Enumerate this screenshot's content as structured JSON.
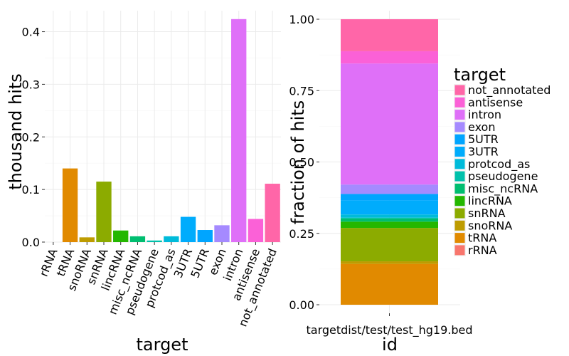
{
  "chart_data": [
    {
      "type": "bar",
      "xlabel": "target",
      "ylabel": "thousand hits",
      "ylim": [
        0,
        0.44
      ],
      "yticks": [
        0.0,
        0.1,
        0.2,
        0.3,
        0.4
      ],
      "ytick_labels": [
        "0.0",
        "0.1",
        "0.2",
        "0.3",
        "0.4"
      ],
      "grid": true,
      "categories": [
        "rRNA",
        "tRNA",
        "snoRNA",
        "snRNA",
        "lincRNA",
        "misc_ncRNA",
        "pseudogene",
        "protcod_as",
        "3UTR",
        "5UTR",
        "exon",
        "intron",
        "antisense",
        "not_annotated"
      ],
      "values": [
        0.0,
        0.14,
        0.009,
        0.115,
        0.022,
        0.011,
        0.003,
        0.011,
        0.048,
        0.023,
        0.032,
        0.424,
        0.044,
        0.111
      ],
      "colors": [
        "#F8766D",
        "#E18A00",
        "#BE9C00",
        "#8CAB00",
        "#24B700",
        "#00BE70",
        "#00C1AB",
        "#00BBDA",
        "#00ACFC",
        "#00A5FF",
        "#A58AFF",
        "#DF70F8",
        "#FB61D7",
        "#FF66A8"
      ]
    },
    {
      "type": "bar",
      "stacked": true,
      "xlabel": "id",
      "ylabel": "fraction of hits",
      "ylim": [
        0,
        1
      ],
      "yticks": [
        0.0,
        0.25,
        0.5,
        0.75,
        1.0
      ],
      "ytick_labels": [
        "0.00",
        "0.25",
        "0.50",
        "0.75",
        "1.00"
      ],
      "grid": true,
      "categories": [
        "targetdist/test/test_hg19.bed"
      ],
      "legend_title": "target",
      "legend_position": "right",
      "legend": [
        "not_annotated",
        "antisense",
        "intron",
        "exon",
        "5UTR",
        "3UTR",
        "protcod_as",
        "pseudogene",
        "misc_ncRNA",
        "lincRNA",
        "snRNA",
        "snoRNA",
        "tRNA",
        "rRNA"
      ],
      "legend_colors": [
        "#FF66A8",
        "#FB61D7",
        "#DF70F8",
        "#A58AFF",
        "#00A5FF",
        "#00ACFC",
        "#00BBDA",
        "#00C1AB",
        "#00BE70",
        "#24B700",
        "#8CAB00",
        "#BE9C00",
        "#E18A00",
        "#F8766D"
      ],
      "series": [
        {
          "name": "rRNA",
          "values": [
            0.0
          ]
        },
        {
          "name": "tRNA",
          "values": [
            0.143
          ]
        },
        {
          "name": "snoRNA",
          "values": [
            0.009
          ]
        },
        {
          "name": "snRNA",
          "values": [
            0.117
          ]
        },
        {
          "name": "lincRNA",
          "values": [
            0.022
          ]
        },
        {
          "name": "misc_ncRNA",
          "values": [
            0.011
          ]
        },
        {
          "name": "pseudogene",
          "values": [
            0.003
          ]
        },
        {
          "name": "protcod_as",
          "values": [
            0.011
          ]
        },
        {
          "name": "3UTR",
          "values": [
            0.049
          ]
        },
        {
          "name": "5UTR",
          "values": [
            0.023
          ]
        },
        {
          "name": "exon",
          "values": [
            0.033
          ]
        },
        {
          "name": "intron",
          "values": [
            0.424
          ]
        },
        {
          "name": "antisense",
          "values": [
            0.043
          ]
        },
        {
          "name": "not_annotated",
          "values": [
            0.112
          ]
        }
      ]
    }
  ]
}
